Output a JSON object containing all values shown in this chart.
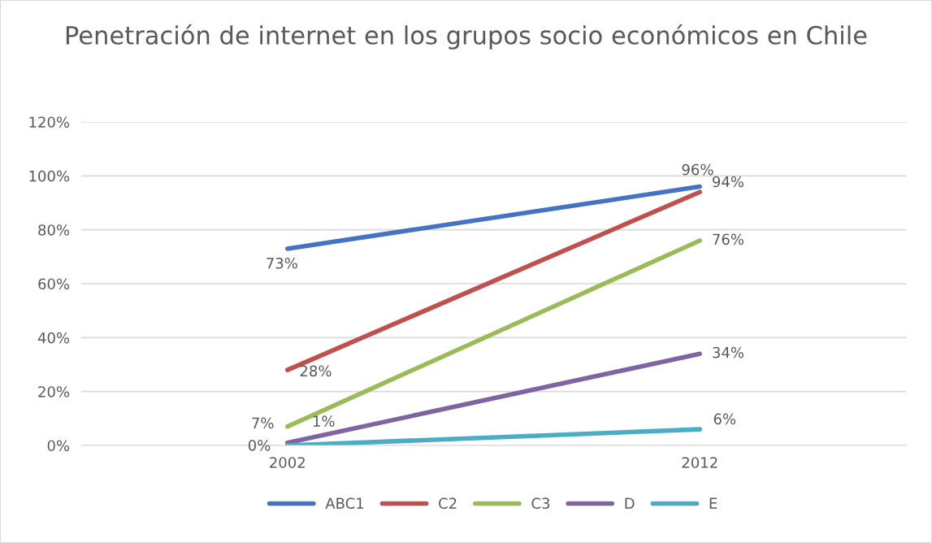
{
  "chart_data": {
    "type": "line",
    "title": "Penetración de internet en los grupos socio económicos en Chile",
    "categories": [
      "2002",
      "2012"
    ],
    "series": [
      {
        "name": "ABC1",
        "color": "#4472c4",
        "values": [
          73,
          96
        ],
        "value_labels": [
          "73%",
          "96%"
        ]
      },
      {
        "name": "C2",
        "color": "#c0504d",
        "values": [
          28,
          94
        ],
        "value_labels": [
          "28%",
          "94%"
        ]
      },
      {
        "name": "C3",
        "color": "#9bbb59",
        "values": [
          7,
          76
        ],
        "value_labels": [
          "7%",
          "76%"
        ]
      },
      {
        "name": "D",
        "color": "#8064a2",
        "values": [
          1,
          34
        ],
        "value_labels": [
          "1%",
          "34%"
        ]
      },
      {
        "name": "E",
        "color": "#4bacc6",
        "values": [
          0,
          6
        ],
        "value_labels": [
          "0%",
          "6%"
        ]
      }
    ],
    "ylim": [
      0,
      120
    ],
    "yticks": [
      {
        "value": 0,
        "label": "0%"
      },
      {
        "value": 20,
        "label": "20%"
      },
      {
        "value": 40,
        "label": "40%"
      },
      {
        "value": 60,
        "label": "60%"
      },
      {
        "value": 80,
        "label": "80%"
      },
      {
        "value": 100,
        "label": "100%"
      },
      {
        "value": 120,
        "label": "120%"
      }
    ],
    "grid": "y",
    "legend": "bottom",
    "marker": "none",
    "line_style": "solid"
  }
}
